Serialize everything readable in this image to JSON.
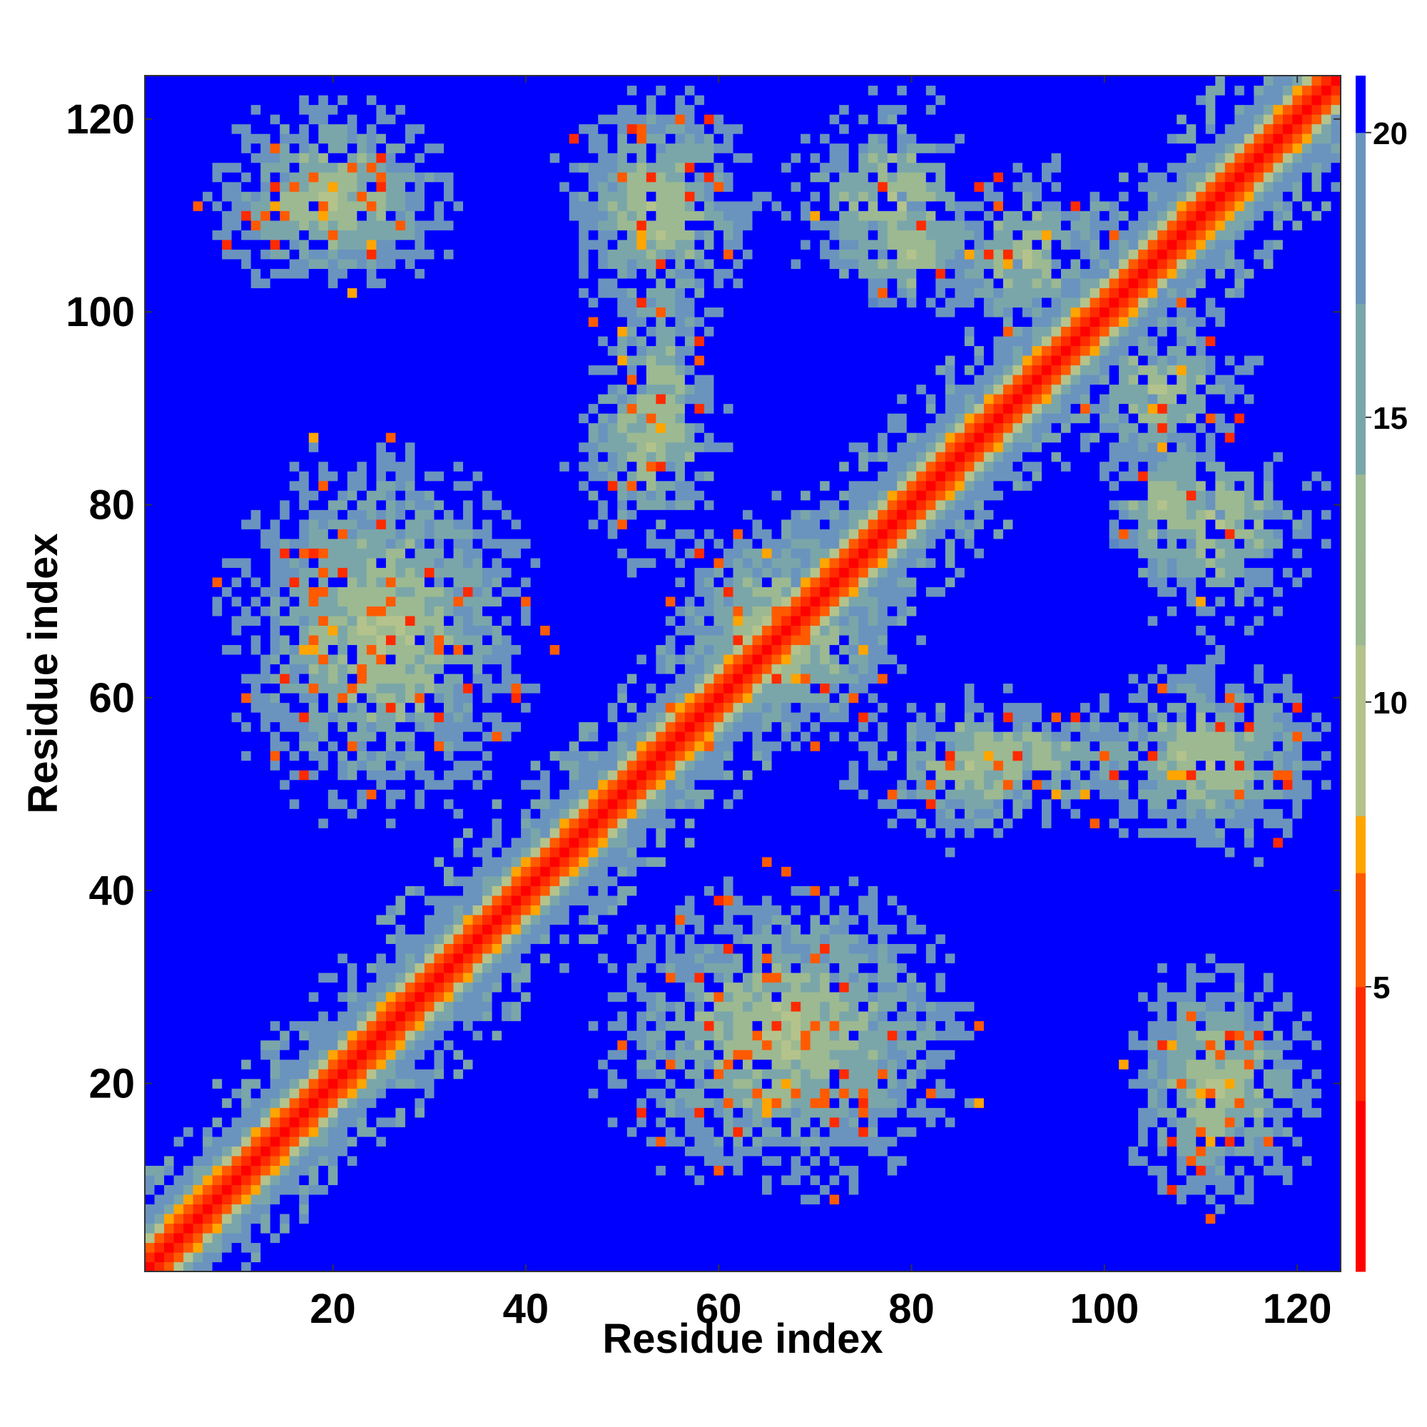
{
  "chart_data": {
    "type": "heatmap",
    "title": "",
    "xlabel": "Residue index",
    "ylabel": "Residue index",
    "n_residues": 124,
    "xlim": [
      0.5,
      124.5
    ],
    "ylim": [
      0.5,
      124.5
    ],
    "x_ticks": [
      20,
      40,
      60,
      80,
      100,
      120
    ],
    "y_ticks": [
      20,
      40,
      60,
      80,
      100,
      120
    ],
    "x_tick_labels": [
      "20",
      "40",
      "60",
      "80",
      "100",
      "120"
    ],
    "y_tick_labels": [
      "20",
      "40",
      "60",
      "80",
      "100",
      "120"
    ],
    "colorbar": {
      "range": [
        0,
        21
      ],
      "ticks": [
        5,
        10,
        15,
        20
      ],
      "tick_labels": [
        "5",
        "10",
        "15",
        "20"
      ],
      "stops": [
        {
          "value": 0,
          "color": "#ff0000"
        },
        {
          "value": 3,
          "color": "#ff2a00"
        },
        {
          "value": 5,
          "color": "#ff5a00"
        },
        {
          "value": 7,
          "color": "#ffa500"
        },
        {
          "value": 8,
          "color": "#b4c38c"
        },
        {
          "value": 11,
          "color": "#9cb992"
        },
        {
          "value": 14,
          "color": "#7aa6aa"
        },
        {
          "value": 17,
          "color": "#6a94be"
        },
        {
          "value": 20,
          "color": "#5a86c4"
        },
        {
          "value": 20.01,
          "color": "#0000ff"
        },
        {
          "value": 21,
          "color": "#0000ff"
        }
      ],
      "saturation_value": 21
    },
    "description_note_free": true,
    "structure": {
      "diagonal_width": 6,
      "contact_blobs": [
        {
          "x_center": 20,
          "y_center": 112,
          "x_half_width": 12,
          "y_half_width": 9
        },
        {
          "x_center": 54,
          "y_center": 110,
          "x_half_width": 9,
          "y_half_width": 12
        },
        {
          "x_center": 80,
          "y_center": 106,
          "x_half_width": 10,
          "y_half_width": 6
        },
        {
          "x_center": 53,
          "y_center": 86,
          "x_half_width": 8,
          "y_half_width": 12
        },
        {
          "x_center": 25,
          "y_center": 67,
          "x_half_width": 15,
          "y_half_width": 18
        },
        {
          "x_center": 67,
          "y_center": 67,
          "x_half_width": 12,
          "y_half_width": 12
        },
        {
          "x_center": 112,
          "y_center": 78,
          "x_half_width": 10,
          "y_half_width": 10
        },
        {
          "x_center": 92,
          "y_center": 54,
          "x_half_width": 12,
          "y_half_width": 6
        },
        {
          "x_center": 112,
          "y_center": 54,
          "x_half_width": 10,
          "y_half_width": 10
        },
        {
          "x_center": 67,
          "y_center": 25,
          "x_half_width": 18,
          "y_half_width": 15
        },
        {
          "x_center": 112,
          "y_center": 20,
          "x_half_width": 10,
          "y_half_width": 12
        },
        {
          "x_center": 106,
          "y_center": 92,
          "x_half_width": 9,
          "y_half_width": 9
        }
      ]
    }
  }
}
